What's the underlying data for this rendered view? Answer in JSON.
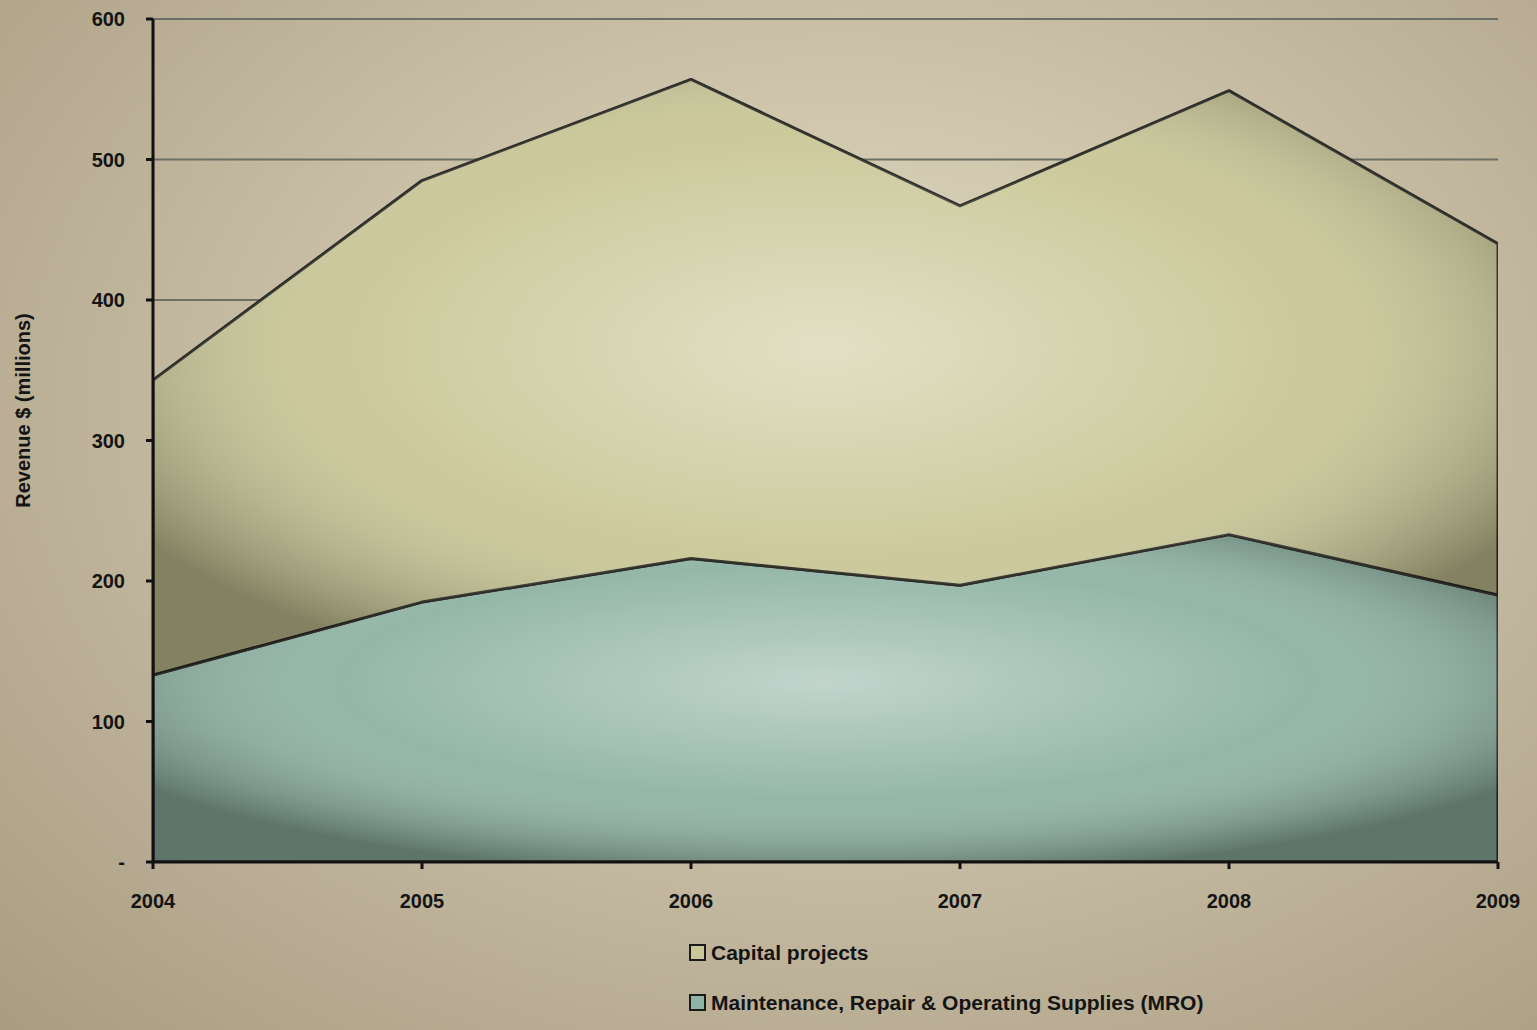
{
  "chart_data": {
    "type": "area",
    "stacked": true,
    "y_label": "Revenue $ (millions)",
    "categories": [
      "2004",
      "2005",
      "2006",
      "2007",
      "2008",
      "2009"
    ],
    "series": [
      {
        "name": "Capital projects",
        "color": "#c9c796",
        "values": [
          210,
          300,
          341,
          270,
          316,
          250
        ]
      },
      {
        "name": "Maintenance, Repair & Operating Supplies (MRO)",
        "color": "#8fb3a4",
        "values": [
          133,
          185,
          216,
          197,
          233,
          190
        ]
      }
    ],
    "ylim": [
      0,
      600
    ],
    "yticks": [
      {
        "value": 0,
        "label": "-"
      },
      100,
      200,
      300,
      400,
      500,
      600
    ],
    "grid": true,
    "legend": "bottom"
  }
}
